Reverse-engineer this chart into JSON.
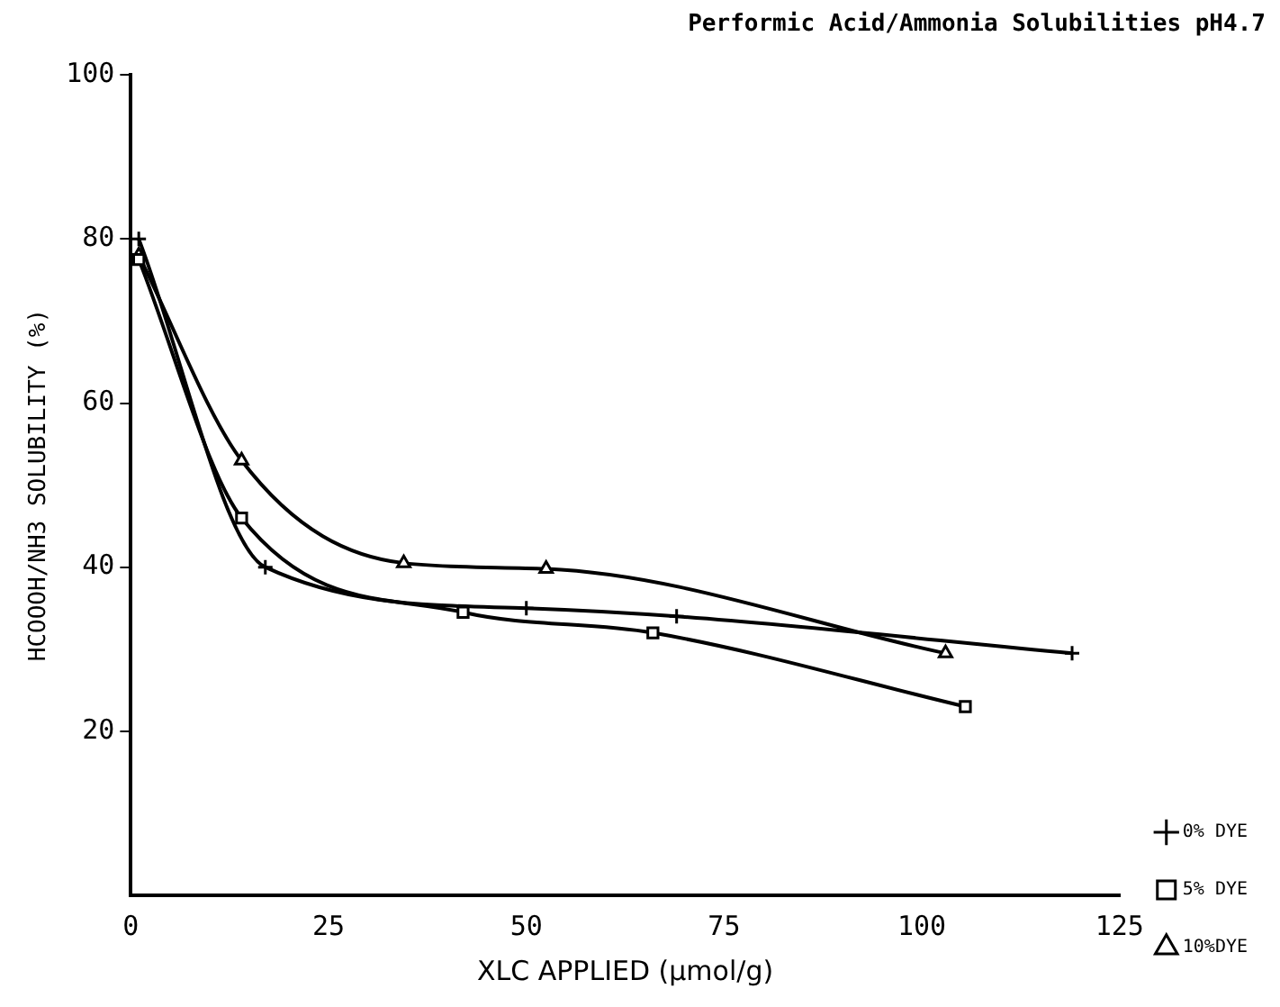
{
  "chart_data": {
    "type": "line",
    "title": "Performic Acid/Ammonia Solubilities pH4.7",
    "xlabel": "XLC APPLIED (μmol/g)",
    "ylabel": "HCOOOH/NH3 SOLUBILITY (%)",
    "xlim": [
      0,
      125
    ],
    "xticks": [
      0,
      25,
      50,
      75,
      100,
      125
    ],
    "ylim": [
      0,
      100
    ],
    "yticks": [
      20,
      40,
      60,
      80,
      100
    ],
    "grid": false,
    "legend": "right",
    "line_style": "solid",
    "series": [
      {
        "name": "0% DYE",
        "color": "#000000",
        "marker": "cross",
        "x": [
          1,
          17,
          50,
          69,
          119
        ],
        "values": [
          80,
          40,
          35,
          34,
          29.5
        ]
      },
      {
        "name": "5% DYE",
        "color": "#000000",
        "marker": "square",
        "x": [
          1,
          14,
          42,
          66,
          105.5
        ],
        "values": [
          77.5,
          46,
          34.5,
          32,
          23
        ]
      },
      {
        "name": "10%DYE",
        "color": "#000000",
        "marker": "triangle",
        "x": [
          1,
          14,
          34.5,
          52.5,
          103
        ],
        "values": [
          78,
          53,
          40.5,
          39.8,
          29.5
        ]
      }
    ]
  }
}
